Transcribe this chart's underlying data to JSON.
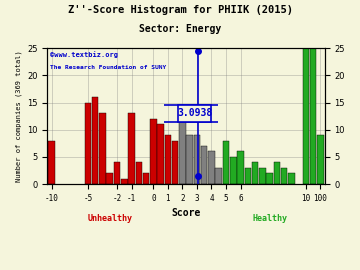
{
  "title": "Z''-Score Histogram for PHIIK (2015)",
  "subtitle": "Sector: Energy",
  "xlabel": "Score",
  "ylabel": "Number of companies (369 total)",
  "watermark_line1": "©www.textbiz.org",
  "watermark_line2": "The Research Foundation of SUNY",
  "score_label": "3.0938",
  "ylim": [
    0,
    25
  ],
  "yright_lim": [
    0,
    25
  ],
  "background_color": "#f5f5dc",
  "bar_data": [
    {
      "bin": 0,
      "height": 8,
      "color": "#cc0000"
    },
    {
      "bin": 1,
      "height": 0,
      "color": "#cc0000"
    },
    {
      "bin": 2,
      "height": 0,
      "color": "#cc0000"
    },
    {
      "bin": 3,
      "height": 0,
      "color": "#cc0000"
    },
    {
      "bin": 4,
      "height": 0,
      "color": "#cc0000"
    },
    {
      "bin": 5,
      "height": 15,
      "color": "#cc0000"
    },
    {
      "bin": 6,
      "height": 16,
      "color": "#cc0000"
    },
    {
      "bin": 7,
      "height": 13,
      "color": "#cc0000"
    },
    {
      "bin": 8,
      "height": 2,
      "color": "#cc0000"
    },
    {
      "bin": 9,
      "height": 4,
      "color": "#cc0000"
    },
    {
      "bin": 10,
      "height": 1,
      "color": "#cc0000"
    },
    {
      "bin": 11,
      "height": 13,
      "color": "#cc0000"
    },
    {
      "bin": 12,
      "height": 4,
      "color": "#cc0000"
    },
    {
      "bin": 13,
      "height": 2,
      "color": "#cc0000"
    },
    {
      "bin": 14,
      "height": 12,
      "color": "#cc0000"
    },
    {
      "bin": 15,
      "height": 11,
      "color": "#cc0000"
    },
    {
      "bin": 16,
      "height": 9,
      "color": "#cc0000"
    },
    {
      "bin": 17,
      "height": 8,
      "color": "#cc0000"
    },
    {
      "bin": 18,
      "height": 13,
      "color": "#808080"
    },
    {
      "bin": 19,
      "height": 9,
      "color": "#808080"
    },
    {
      "bin": 20,
      "height": 9,
      "color": "#808080"
    },
    {
      "bin": 21,
      "height": 7,
      "color": "#808080"
    },
    {
      "bin": 22,
      "height": 6,
      "color": "#808080"
    },
    {
      "bin": 23,
      "height": 3,
      "color": "#808080"
    },
    {
      "bin": 24,
      "height": 8,
      "color": "#22aa22"
    },
    {
      "bin": 25,
      "height": 5,
      "color": "#22aa22"
    },
    {
      "bin": 26,
      "height": 6,
      "color": "#22aa22"
    },
    {
      "bin": 27,
      "height": 3,
      "color": "#22aa22"
    },
    {
      "bin": 28,
      "height": 4,
      "color": "#22aa22"
    },
    {
      "bin": 29,
      "height": 3,
      "color": "#22aa22"
    },
    {
      "bin": 30,
      "height": 2,
      "color": "#22aa22"
    },
    {
      "bin": 31,
      "height": 4,
      "color": "#22aa22"
    },
    {
      "bin": 32,
      "height": 3,
      "color": "#22aa22"
    },
    {
      "bin": 33,
      "height": 2,
      "color": "#22aa22"
    },
    {
      "bin": 34,
      "height": 0,
      "color": "#22aa22"
    },
    {
      "bin": 35,
      "height": 25,
      "color": "#22aa22"
    },
    {
      "bin": 36,
      "height": 25,
      "color": "#22aa22"
    },
    {
      "bin": 37,
      "height": 9,
      "color": "#22aa22"
    }
  ],
  "xtick_bins": [
    0,
    5,
    9,
    11,
    14,
    16,
    18,
    20,
    22,
    24,
    26,
    35,
    37
  ],
  "xtick_labels": [
    "-10",
    "-5",
    "-2",
    "-1",
    "0",
    "1",
    "2",
    "3",
    "4",
    "5",
    "6",
    "10",
    "100"
  ],
  "score_bin": 20.1876,
  "unhealthy_label": "Unhealthy",
  "healthy_label": "Healthy",
  "unhealthy_color": "#cc0000",
  "healthy_color": "#22aa22",
  "marker_color": "#0000cc",
  "annotation_color": "#0000cc"
}
